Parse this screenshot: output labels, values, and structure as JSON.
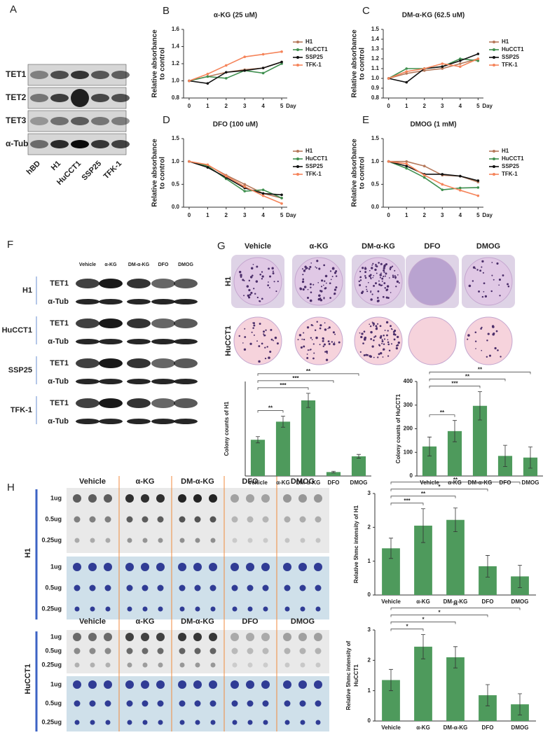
{
  "panel_A": {
    "label": "A",
    "proteins": [
      "TET1",
      "TET2",
      "TET3",
      "α-Tub"
    ],
    "lanes": [
      "hBD",
      "H1",
      "HuCCT1",
      "SSP25",
      "TFK-1"
    ]
  },
  "panel_F": {
    "label": "F",
    "treatments": [
      "Vehicle",
      "α-KG",
      "DM-α-KG",
      "DFO",
      "DMOG"
    ],
    "cell_lines": [
      "H1",
      "HuCCT1",
      "SSP25",
      "TFK-1"
    ],
    "bands": [
      "TET1",
      "α-Tub"
    ]
  },
  "panel_G": {
    "label": "G",
    "treatments": [
      "Vehicle",
      "α-KG",
      "DM-α-KG",
      "DFO",
      "DMOG"
    ],
    "rows": [
      "H1",
      "HuCCT1"
    ]
  },
  "panel_H": {
    "label": "H",
    "treatments": [
      "Vehicle",
      "α-KG",
      "DM-α-KG",
      "DFO",
      "DMOG"
    ],
    "cell_lines": [
      "H1",
      "HuCCT1"
    ],
    "amounts": [
      "1ug",
      "0.5ug",
      "0.25ug"
    ]
  },
  "chart_data": [
    {
      "type": "line",
      "panel": "B",
      "title": "α-KG (25 uM)",
      "ylabel": [
        "Relative absorbance",
        "to control"
      ],
      "xlabel": "Day",
      "x": [
        0,
        1,
        2,
        3,
        4,
        5
      ],
      "xlim": [
        -0.3,
        5.3
      ],
      "xticks": [
        0,
        1,
        2,
        3,
        4,
        5
      ],
      "ylim": [
        0.8,
        1.6
      ],
      "yticks": [
        {
          "value": 0.8,
          "label": "0.8"
        },
        {
          "value": 1.0,
          "label": "1.0"
        },
        {
          "value": 1.2,
          "label": "1.2"
        },
        {
          "value": 1.4,
          "label": "1.4"
        },
        {
          "value": 1.6,
          "label": "1.6"
        }
      ],
      "series": [
        {
          "name": "H1",
          "color": "#b5785a",
          "values": [
            1.0,
            1.05,
            1.1,
            1.13,
            1.15,
            1.22
          ]
        },
        {
          "name": "HuCCT1",
          "color": "#3f8f4f",
          "values": [
            1.0,
            1.05,
            1.03,
            1.12,
            1.09,
            1.2
          ]
        },
        {
          "name": "SSP25",
          "color": "#111111",
          "values": [
            1.0,
            0.97,
            1.1,
            1.12,
            1.15,
            1.22
          ]
        },
        {
          "name": "TFK-1",
          "color": "#f5845a",
          "values": [
            1.0,
            1.08,
            1.18,
            1.28,
            1.31,
            1.34
          ]
        }
      ]
    },
    {
      "type": "line",
      "panel": "C",
      "title": "DM-α-KG (62.5 uM)",
      "ylabel": [
        "Relative absorbance",
        "to control"
      ],
      "xlabel": "Day",
      "x": [
        0,
        1,
        2,
        3,
        4,
        5
      ],
      "xlim": [
        -0.3,
        5.3
      ],
      "xticks": [
        0,
        1,
        2,
        3,
        4,
        5
      ],
      "ylim": [
        0.8,
        1.5
      ],
      "yticks": [
        {
          "value": 0.8,
          "label": "0.8"
        },
        {
          "value": 0.9,
          "label": "0.9"
        },
        {
          "value": 1.0,
          "label": "1.0"
        },
        {
          "value": 1.1,
          "label": "1.1"
        },
        {
          "value": 1.2,
          "label": "1.2"
        },
        {
          "value": 1.3,
          "label": "1.3"
        },
        {
          "value": 1.4,
          "label": "1.4"
        },
        {
          "value": 1.5,
          "label": "1.5"
        }
      ],
      "series": [
        {
          "name": "H1",
          "color": "#b5785a",
          "values": [
            1.0,
            1.05,
            1.08,
            1.1,
            1.15,
            1.2
          ]
        },
        {
          "name": "HuCCT1",
          "color": "#3f8f4f",
          "values": [
            1.0,
            1.1,
            1.1,
            1.12,
            1.2,
            1.18
          ]
        },
        {
          "name": "SSP25",
          "color": "#111111",
          "values": [
            1.0,
            0.96,
            1.1,
            1.12,
            1.18,
            1.25
          ]
        },
        {
          "name": "TFK-1",
          "color": "#f5845a",
          "values": [
            1.0,
            1.07,
            1.1,
            1.15,
            1.12,
            1.2
          ]
        }
      ]
    },
    {
      "type": "line",
      "panel": "D",
      "title": "DFO (100 uM)",
      "ylabel": [
        "Relative absorbance",
        "to control"
      ],
      "xlabel": "Day",
      "x": [
        0,
        1,
        2,
        3,
        4,
        5
      ],
      "xlim": [
        -0.3,
        5.3
      ],
      "xticks": [
        0,
        1,
        2,
        3,
        4,
        5
      ],
      "ylim": [
        0,
        1.5
      ],
      "yticks": [
        {
          "value": 0,
          "label": "0.0"
        },
        {
          "value": 0.5,
          "label": "0.5"
        },
        {
          "value": 1.0,
          "label": "1.0"
        },
        {
          "value": 1.5,
          "label": "1.5"
        }
      ],
      "series": [
        {
          "name": "H1",
          "color": "#b5785a",
          "values": [
            1.0,
            0.92,
            0.7,
            0.5,
            0.3,
            0.2
          ]
        },
        {
          "name": "HuCCT1",
          "color": "#3f8f4f",
          "values": [
            1.0,
            0.9,
            0.62,
            0.35,
            0.38,
            0.2
          ]
        },
        {
          "name": "SSP25",
          "color": "#111111",
          "values": [
            1.0,
            0.87,
            0.65,
            0.42,
            0.3,
            0.27
          ]
        },
        {
          "name": "TFK-1",
          "color": "#f5845a",
          "values": [
            1.0,
            0.93,
            0.68,
            0.45,
            0.25,
            0.08
          ]
        }
      ]
    },
    {
      "type": "line",
      "panel": "E",
      "title": "DMOG (1 mM)",
      "ylabel": [
        "Relative absorbance",
        "to control"
      ],
      "xlabel": "Day",
      "x": [
        0,
        1,
        2,
        3,
        4,
        5
      ],
      "xlim": [
        -0.3,
        5.3
      ],
      "xticks": [
        0,
        1,
        2,
        3,
        4,
        5
      ],
      "ylim": [
        0,
        1.5
      ],
      "yticks": [
        {
          "value": 0,
          "label": "0.0"
        },
        {
          "value": 0.5,
          "label": "0.5"
        },
        {
          "value": 1.0,
          "label": "1.0"
        },
        {
          "value": 1.5,
          "label": "1.5"
        }
      ],
      "series": [
        {
          "name": "H1",
          "color": "#b5785a",
          "values": [
            1.0,
            1.0,
            0.9,
            0.7,
            0.68,
            0.55
          ]
        },
        {
          "name": "HuCCT1",
          "color": "#3f8f4f",
          "values": [
            1.0,
            0.85,
            0.65,
            0.38,
            0.42,
            0.43
          ]
        },
        {
          "name": "SSP25",
          "color": "#111111",
          "values": [
            1.0,
            0.9,
            0.72,
            0.72,
            0.68,
            0.58
          ]
        },
        {
          "name": "TFK-1",
          "color": "#f5845a",
          "values": [
            1.0,
            0.95,
            0.7,
            0.5,
            0.37,
            0.25
          ]
        }
      ]
    },
    {
      "type": "bar",
      "ylabel": [
        "Colony counts of H1"
      ],
      "categories": [
        "Vehicle",
        "α-KG",
        "DM-α-KG",
        "DFO",
        "DMOG"
      ],
      "values": [
        230,
        345,
        480,
        25,
        125
      ],
      "errors": [
        20,
        35,
        45,
        5,
        12
      ],
      "color": "#4e9a5c",
      "ylim": [
        0,
        600
      ],
      "significance": [
        "**",
        "***",
        "***",
        "**"
      ]
    },
    {
      "type": "bar",
      "ylabel": [
        "Colony counts of HuCCT1"
      ],
      "categories": [
        "Vehicle",
        "α-KG",
        "DM-α-KG",
        "DFO",
        "DMOG"
      ],
      "values": [
        125,
        190,
        297,
        85,
        78
      ],
      "errors": [
        40,
        45,
        60,
        45,
        45
      ],
      "color": "#4e9a5c",
      "ylim": [
        0,
        400
      ],
      "yticks": [
        0,
        100,
        200,
        300,
        400
      ],
      "significance": [
        "**",
        "***",
        "**",
        "**"
      ]
    },
    {
      "type": "bar",
      "ylabel": [
        "Relative 5hmc intensity of H1"
      ],
      "categories": [
        "Vehicle",
        "α-KG",
        "DM-α-KG",
        "DFO",
        "DMOG"
      ],
      "values": [
        1.38,
        2.05,
        2.22,
        0.85,
        0.55
      ],
      "errors": [
        0.3,
        0.5,
        0.35,
        0.32,
        0.33
      ],
      "color": "#4e9a5c",
      "ylim": [
        0,
        3
      ],
      "yticks": [
        0,
        1,
        2,
        3
      ],
      "significance": [
        "***",
        "**",
        "*",
        "**"
      ]
    },
    {
      "type": "bar",
      "ylabel": [
        "Relative 5hmc intensity of",
        "HuCCT1"
      ],
      "categories": [
        "Vehicle",
        "α-KG",
        "DM-α-KG",
        "DFO",
        "DMOG"
      ],
      "values": [
        1.35,
        2.45,
        2.1,
        0.85,
        0.55
      ],
      "errors": [
        0.35,
        0.4,
        0.35,
        0.35,
        0.35
      ],
      "color": "#4e9a5c",
      "ylim": [
        0,
        3
      ],
      "yticks": [
        0,
        1,
        2,
        3
      ],
      "significance": [
        "*",
        "*",
        "*",
        "**"
      ]
    }
  ]
}
